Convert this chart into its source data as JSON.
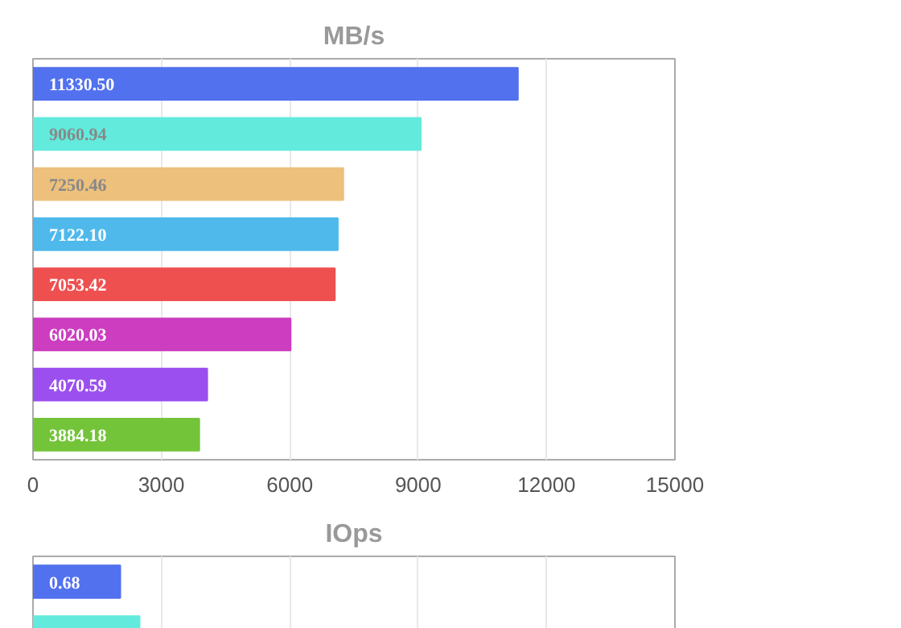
{
  "chart_data": [
    {
      "type": "bar",
      "orientation": "horizontal",
      "title": "MB/s",
      "categories": [
        null,
        null,
        null,
        null,
        null,
        null,
        null,
        null
      ],
      "values": [
        11330.5,
        9060.94,
        7250.46,
        7122.1,
        7053.42,
        6020.03,
        4070.59,
        3884.18
      ],
      "colors": [
        "#5271ee",
        "#62ebdc",
        "#edc07c",
        "#4fb9ec",
        "#ee5050",
        "#cc3dc0",
        "#9b4fef",
        "#74c43a"
      ],
      "value_labels": [
        "11330.50",
        "9060.94",
        "7250.46",
        "7122.10",
        "7053.42",
        "6020.03",
        "4070.59",
        "3884.18"
      ],
      "xlim": [
        0,
        15000
      ],
      "xticks": [
        0,
        3000,
        6000,
        9000,
        12000,
        15000
      ],
      "grid": "x",
      "tick_labels": "x"
    },
    {
      "type": "bar",
      "orientation": "horizontal",
      "title": "IOps",
      "categories": [
        null,
        null
      ],
      "values": [
        0.68,
        0.83
      ],
      "colors": [
        "#5271ee",
        "#62ebdc"
      ],
      "value_labels": [
        "0.68",
        null
      ],
      "xlim": [
        0,
        5
      ],
      "xticks": [
        {
          "value": 0,
          "label": null
        },
        {
          "value": 1,
          "label": null
        },
        {
          "value": 2,
          "label": null
        },
        {
          "value": 3,
          "label": null
        },
        {
          "value": 4,
          "label": null
        },
        {
          "value": 5,
          "label": null
        }
      ],
      "grid": "x",
      "tick_labels": false
    }
  ]
}
